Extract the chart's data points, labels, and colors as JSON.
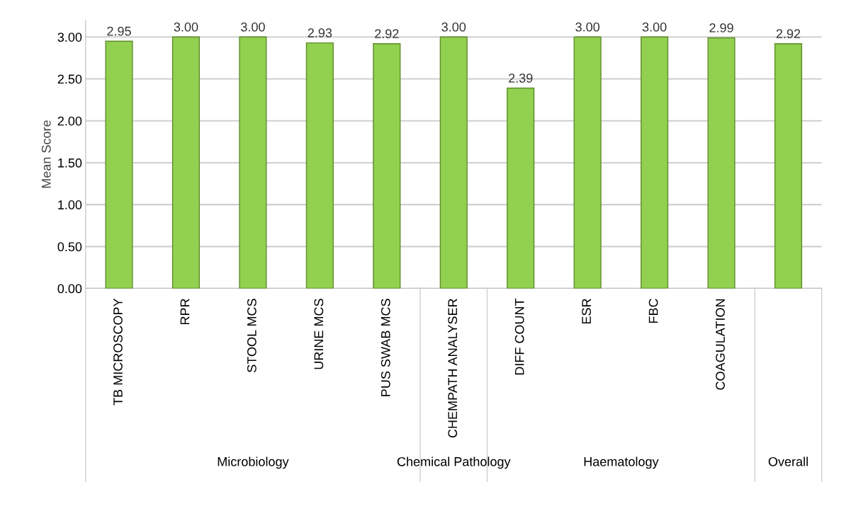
{
  "chart_data": {
    "type": "bar",
    "ylabel": "Mean Score",
    "categories": [
      "TB MICROSCOPY",
      "RPR",
      "STOOL MCS",
      "URINE MCS",
      "PUS SWAB MCS",
      "CHEMPATH ANALYSER",
      "DIFF COUNT",
      "ESR",
      "FBC",
      "COAGULATION",
      null
    ],
    "values": [
      2.95,
      3.0,
      3.0,
      2.93,
      2.92,
      3.0,
      2.39,
      3.0,
      3.0,
      2.99,
      2.92
    ],
    "value_labels": [
      "2.95",
      "3.00",
      "3.00",
      "2.93",
      "2.92",
      "3.00",
      "2.39",
      "3.00",
      "3.00",
      "2.99",
      "2.92"
    ],
    "color": "#92d050",
    "ylim": [
      0,
      3.2
    ],
    "yticks": [
      {
        "value": 0,
        "label": "0.00"
      },
      {
        "value": 0.5,
        "label": "0.50"
      },
      {
        "value": 1,
        "label": "1.00"
      },
      {
        "value": 1.5,
        "label": "1.50"
      },
      {
        "value": 2,
        "label": "2.00"
      },
      {
        "value": 2.5,
        "label": "2.50"
      },
      {
        "value": 3,
        "label": "3.00"
      }
    ],
    "grid": "y",
    "annotations": [
      "Microbiology",
      "Chemical Pathology",
      "Haematology",
      "Overall"
    ]
  }
}
